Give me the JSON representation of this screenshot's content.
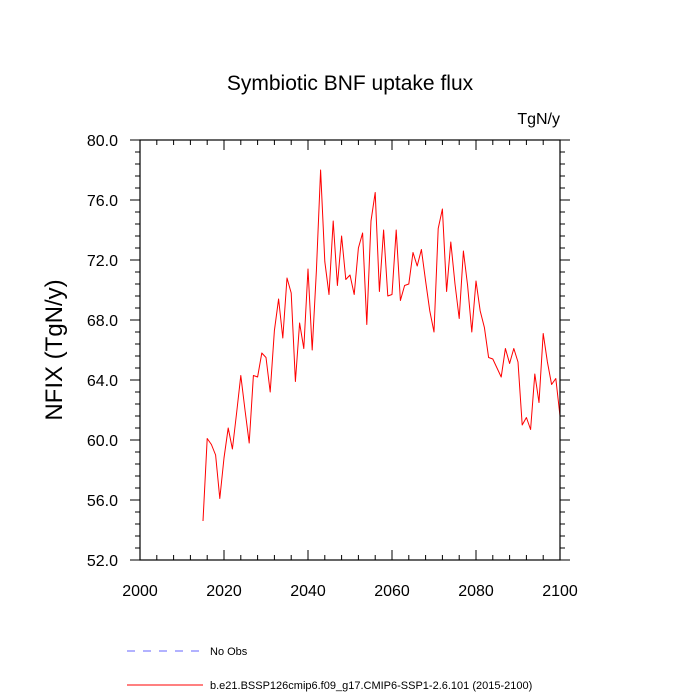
{
  "chart_data": {
    "type": "line",
    "title": "Symbiotic BNF uptake flux",
    "units_label": "TgN/y",
    "ylabel": "NFIX  (TgN/y)",
    "xlabel": "",
    "xlim": [
      2000,
      2100
    ],
    "ylim": [
      52.0,
      80.0
    ],
    "x_ticks": [
      "2000",
      "2020",
      "2040",
      "2060",
      "2080",
      "2100"
    ],
    "y_ticks": [
      "52.0",
      "56.0",
      "60.0",
      "64.0",
      "68.0",
      "72.0",
      "76.0",
      "80.0"
    ],
    "legend": [
      {
        "label": "No Obs",
        "color": "#6666ff",
        "dash": true
      },
      {
        "label": "b.e21.BSSP126cmip6.f09_g17.CMIP6-SSP1-2.6.101 (2015-2100)",
        "color": "#ff0000",
        "dash": false
      }
    ],
    "series": [
      {
        "name": "b.e21.BSSP126cmip6.f09_g17.CMIP6-SSP1-2.6.101 (2015-2100)",
        "color": "#ff0000",
        "x": [
          2015,
          2016,
          2017,
          2018,
          2019,
          2020,
          2021,
          2022,
          2023,
          2024,
          2025,
          2026,
          2027,
          2028,
          2029,
          2030,
          2031,
          2032,
          2033,
          2034,
          2035,
          2036,
          2037,
          2038,
          2039,
          2040,
          2041,
          2042,
          2043,
          2044,
          2045,
          2046,
          2047,
          2048,
          2049,
          2050,
          2051,
          2052,
          2053,
          2054,
          2055,
          2056,
          2057,
          2058,
          2059,
          2060,
          2061,
          2062,
          2063,
          2064,
          2065,
          2066,
          2067,
          2068,
          2069,
          2070,
          2071,
          2072,
          2073,
          2074,
          2075,
          2076,
          2077,
          2078,
          2079,
          2080,
          2081,
          2082,
          2083,
          2084,
          2085,
          2086,
          2087,
          2088,
          2089,
          2090,
          2091,
          2092,
          2093,
          2094,
          2095,
          2096,
          2097,
          2098,
          2099,
          2100
        ],
        "values": [
          54.6,
          60.1,
          59.7,
          59.0,
          56.1,
          58.8,
          60.8,
          59.4,
          61.8,
          64.3,
          62.0,
          59.8,
          64.3,
          64.2,
          65.8,
          65.5,
          63.2,
          67.3,
          69.4,
          66.8,
          70.8,
          69.8,
          63.9,
          67.8,
          66.1,
          71.4,
          66.0,
          71.3,
          78.0,
          71.9,
          69.7,
          74.6,
          70.3,
          73.6,
          70.7,
          71.0,
          69.7,
          72.8,
          73.8,
          67.7,
          74.6,
          76.5,
          69.9,
          74.0,
          69.6,
          69.7,
          74.0,
          69.3,
          70.3,
          70.4,
          72.5,
          71.6,
          72.7,
          70.6,
          68.6,
          67.2,
          74.1,
          75.4,
          69.9,
          73.2,
          70.4,
          68.1,
          72.6,
          70.3,
          67.2,
          70.6,
          68.6,
          67.5,
          65.5,
          65.4,
          64.8,
          64.2,
          66.1,
          65.1,
          66.1,
          65.2,
          61.0,
          61.5,
          60.7,
          64.4,
          62.5,
          67.1,
          65.2,
          63.7,
          64.1,
          61.6
        ]
      }
    ]
  }
}
